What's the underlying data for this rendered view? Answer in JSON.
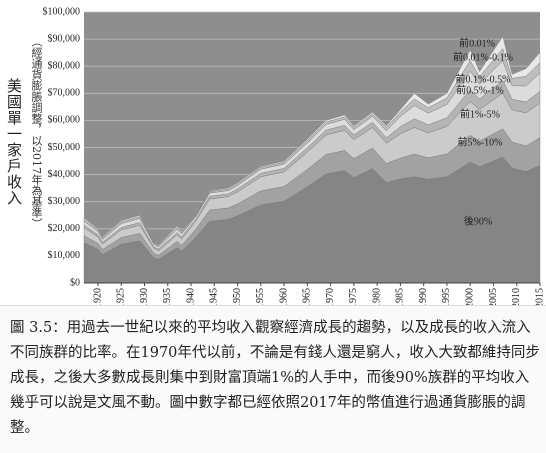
{
  "chart_data": {
    "type": "stacked-area",
    "ylabel": "美國單一家戶收入",
    "ylabel_sub": "（經通貨膨脹調整，以2017年為基準）",
    "caption": "圖 3.5：用過去一世紀以來的平均收入觀察經濟成長的趨勢，以及成長的收入流入不同族群的比率。在1970年代以前，不論是有錢人還是窮人，收入大致都維持同步成長，之後大多數成長則集中到財富頂端1%的人手中，而後90%族群的平均收入幾乎可以說是文風不動。圖中數字都已經依照2017年的幣值進行過通貨膨脹的調整。",
    "x": [
      1917,
      1920,
      1921,
      1925,
      1929,
      1932,
      1933,
      1937,
      1938,
      1941,
      1944,
      1948,
      1950,
      1955,
      1960,
      1965,
      1969,
      1973,
      1975,
      1979,
      1982,
      1985,
      1988,
      1991,
      1995,
      2000,
      2002,
      2007,
      2009,
      2012,
      2015
    ],
    "xlim": [
      1917,
      2015
    ],
    "xticks": [
      1920,
      1925,
      1930,
      1935,
      1940,
      1945,
      1950,
      1955,
      1960,
      1965,
      1970,
      1975,
      1980,
      1985,
      1990,
      1995,
      2000,
      2005,
      2010,
      2015
    ],
    "ylim": [
      0,
      100000
    ],
    "yticks": [
      {
        "value": 0,
        "label": "$0"
      },
      {
        "value": 10000,
        "label": "$10,000"
      },
      {
        "value": 20000,
        "label": "$20,000"
      },
      {
        "value": 30000,
        "label": "$30,000"
      },
      {
        "value": 40000,
        "label": "$40,000"
      },
      {
        "value": 50000,
        "label": "$50,000"
      },
      {
        "value": 60000,
        "label": "$60,000"
      },
      {
        "value": 70000,
        "label": "$70,000"
      },
      {
        "value": 80000,
        "label": "$80,000"
      },
      {
        "value": 90000,
        "label": "$90,000"
      },
      {
        "value": 100000,
        "label": "$100,000"
      }
    ],
    "grid": true,
    "series": [
      {
        "name": "後90%",
        "color": "#858585",
        "values": [
          14900,
          12400,
          10500,
          14300,
          15500,
          9300,
          8700,
          13000,
          11800,
          16800,
          22800,
          23500,
          24800,
          28800,
          30200,
          35500,
          40200,
          41500,
          38900,
          42200,
          37100,
          38400,
          39200,
          38300,
          39200,
          44600,
          42900,
          46400,
          42400,
          41100,
          43400
        ]
      },
      {
        "name": "前5%-10%",
        "color": "#a2a2a2",
        "values": [
          2600,
          2200,
          1900,
          2500,
          2800,
          1700,
          1500,
          2300,
          2100,
          3000,
          4100,
          4200,
          4400,
          5200,
          5400,
          6400,
          7200,
          7400,
          7000,
          7600,
          7000,
          7700,
          8400,
          7900,
          8400,
          9900,
          9400,
          10500,
          9600,
          9500,
          10200
        ]
      },
      {
        "name": "前1%-5%",
        "color": "#cbcbcb",
        "values": [
          2900,
          2400,
          2000,
          2800,
          3000,
          1800,
          1700,
          2500,
          2300,
          3000,
          4100,
          4200,
          4400,
          5200,
          5400,
          6400,
          7200,
          7400,
          7000,
          7600,
          7500,
          9000,
          9800,
          9200,
          10200,
          12500,
          11700,
          13200,
          11900,
          12200,
          12800
        ]
      },
      {
        "name": "前0.5%-1%",
        "color": "#b4b4b4",
        "values": [
          1000,
          800,
          700,
          900,
          1000,
          600,
          600,
          800,
          800,
          700,
          1000,
          1000,
          1100,
          1300,
          1300,
          1600,
          1800,
          1900,
          1700,
          1900,
          2000,
          2600,
          3200,
          3000,
          3200,
          4300,
          3900,
          4600,
          3900,
          4000,
          4300
        ]
      },
      {
        "name": "前0.1%-0.5%",
        "color": "#dcdcdc",
        "values": [
          1400,
          1200,
          1000,
          1400,
          1500,
          900,
          800,
          1300,
          1100,
          900,
          1200,
          1200,
          1300,
          1500,
          1600,
          1800,
          2100,
          2200,
          2000,
          2200,
          2600,
          3800,
          4900,
          4300,
          4900,
          6900,
          5500,
          7300,
          5000,
          5900,
          6800
        ]
      },
      {
        "name": "前0.01%-0.1%",
        "color": "#bebebe",
        "values": [
          700,
          600,
          500,
          700,
          700,
          400,
          400,
          600,
          500,
          400,
          500,
          500,
          600,
          600,
          700,
          800,
          900,
          900,
          900,
          900,
          1200,
          1600,
          2400,
          2000,
          2400,
          3900,
          2700,
          4500,
          2700,
          3600,
          3800
        ]
      },
      {
        "name": "前0.01%",
        "color": "#e8e8e8",
        "values": [
          500,
          400,
          400,
          400,
          500,
          300,
          300,
          500,
          400,
          200,
          300,
          400,
          400,
          400,
          400,
          500,
          600,
          700,
          500,
          600,
          600,
          900,
          2100,
          1300,
          1700,
          3900,
          1900,
          4500,
          1500,
          2800,
          3800
        ]
      }
    ]
  }
}
